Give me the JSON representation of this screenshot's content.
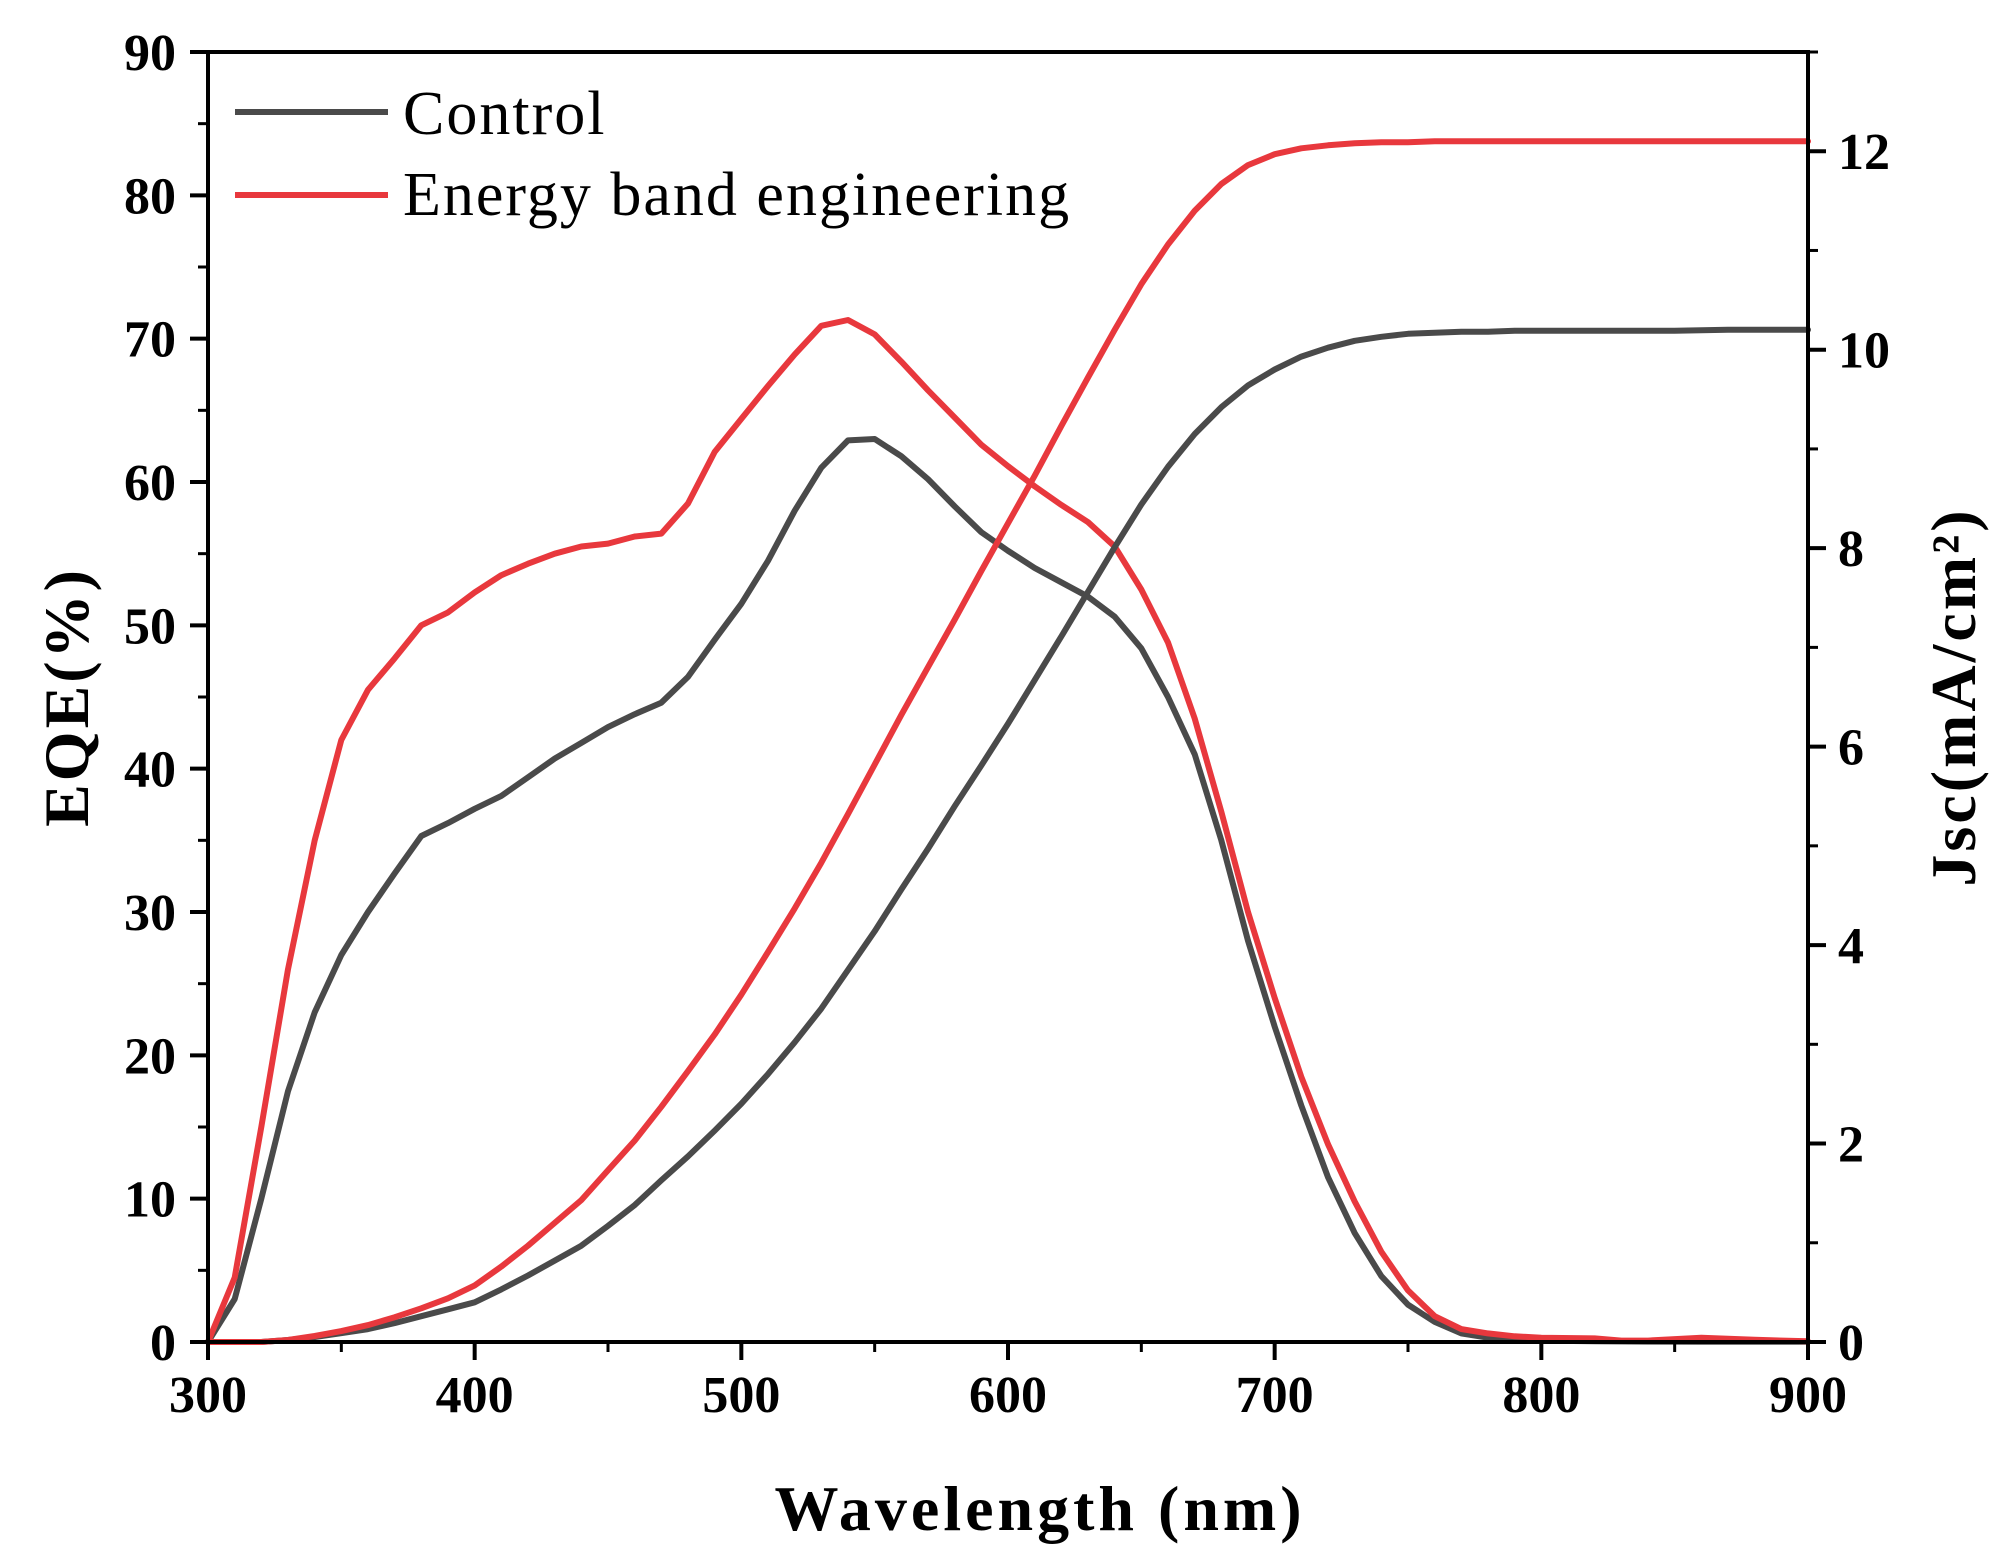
{
  "chart_data": {
    "type": "line",
    "title": "",
    "xlabel": "Wavelength (nm)",
    "ylabel_left": "EQE(%)",
    "ylabel_right": "Jsc(mA/cm²)",
    "xlim": [
      300,
      900
    ],
    "ylim_left": [
      0,
      90
    ],
    "ylim_right": [
      0,
      13
    ],
    "x_ticks": [
      300,
      400,
      500,
      600,
      700,
      800,
      900
    ],
    "y_left_ticks": [
      0,
      10,
      20,
      30,
      40,
      50,
      60,
      70,
      80,
      90
    ],
    "y_right_ticks": [
      0,
      2,
      4,
      6,
      8,
      10,
      12
    ],
    "grid": false,
    "legend_position": "top-left",
    "legend": [
      "Control",
      "Energy band engineering"
    ],
    "colors": {
      "control": "#4a4a4a",
      "energy": "#e8383d"
    },
    "series": [
      {
        "name": "Control",
        "kind": "EQE",
        "axis": "left",
        "x": [
          300,
          310,
          320,
          330,
          340,
          350,
          360,
          370,
          380,
          390,
          400,
          410,
          420,
          430,
          440,
          450,
          460,
          470,
          480,
          490,
          500,
          510,
          520,
          530,
          540,
          550,
          560,
          570,
          580,
          590,
          600,
          610,
          620,
          630,
          640,
          650,
          660,
          670,
          680,
          690,
          700,
          710,
          720,
          730,
          740,
          750,
          760,
          770,
          780,
          790,
          800,
          820,
          840,
          860,
          880,
          900
        ],
        "y": [
          0,
          3,
          10,
          17.5,
          23,
          27,
          30,
          32.7,
          35.3,
          36.2,
          37.2,
          38.1,
          39.4,
          40.7,
          41.8,
          42.9,
          43.8,
          44.6,
          46.4,
          49,
          51.5,
          54.5,
          58,
          61,
          62.9,
          63,
          61.8,
          60.2,
          58.3,
          56.5,
          55.2,
          54,
          53,
          52,
          50.6,
          48.4,
          45,
          41,
          35,
          28,
          22,
          16.5,
          11.5,
          7.6,
          4.6,
          2.6,
          1.4,
          0.6,
          0.3,
          0.2,
          0.1,
          0.05,
          0.03,
          0.02,
          0.02,
          0.02
        ]
      },
      {
        "name": "Energy band engineering",
        "kind": "EQE",
        "axis": "left",
        "x": [
          300,
          310,
          320,
          330,
          340,
          350,
          360,
          370,
          380,
          390,
          400,
          410,
          420,
          430,
          440,
          450,
          460,
          470,
          480,
          490,
          500,
          510,
          520,
          530,
          540,
          550,
          560,
          570,
          580,
          590,
          600,
          610,
          620,
          630,
          640,
          650,
          660,
          670,
          680,
          690,
          700,
          710,
          720,
          730,
          740,
          750,
          760,
          770,
          780,
          790,
          800,
          820,
          830,
          840,
          860,
          880,
          900
        ],
        "y": [
          0,
          4.5,
          15,
          26,
          35,
          42,
          45.5,
          47.7,
          50,
          50.9,
          52.3,
          53.5,
          54.3,
          55,
          55.5,
          55.7,
          56.2,
          56.4,
          58.5,
          62.1,
          64.4,
          66.7,
          68.9,
          70.9,
          71.3,
          70.3,
          68.4,
          66.4,
          64.5,
          62.6,
          61.1,
          59.7,
          58.4,
          57.2,
          55.5,
          52.5,
          48.8,
          43.5,
          37,
          30,
          24,
          18.5,
          13.8,
          9.8,
          6.3,
          3.6,
          1.8,
          0.9,
          0.6,
          0.4,
          0.3,
          0.25,
          0.1,
          0.1,
          0.3,
          0.15,
          0.05
        ]
      },
      {
        "name": "Control",
        "kind": "Jsc",
        "axis": "right",
        "x": [
          300,
          320,
          330,
          340,
          350,
          360,
          370,
          380,
          390,
          400,
          410,
          420,
          430,
          440,
          450,
          460,
          470,
          480,
          490,
          500,
          510,
          520,
          530,
          540,
          550,
          560,
          570,
          580,
          590,
          600,
          610,
          620,
          630,
          640,
          650,
          660,
          670,
          680,
          690,
          700,
          710,
          720,
          730,
          740,
          750,
          760,
          770,
          780,
          790,
          800,
          850,
          870,
          900
        ],
        "y": [
          0,
          0,
          0.02,
          0.05,
          0.09,
          0.13,
          0.19,
          0.26,
          0.33,
          0.4,
          0.53,
          0.67,
          0.82,
          0.97,
          1.17,
          1.38,
          1.63,
          1.87,
          2.13,
          2.4,
          2.7,
          3.02,
          3.36,
          3.75,
          4.14,
          4.56,
          4.97,
          5.4,
          5.81,
          6.23,
          6.67,
          7.11,
          7.56,
          8.01,
          8.44,
          8.82,
          9.15,
          9.42,
          9.64,
          9.8,
          9.93,
          10.02,
          10.09,
          10.13,
          10.16,
          10.17,
          10.18,
          10.18,
          10.19,
          10.19,
          10.19,
          10.2,
          10.2
        ]
      },
      {
        "name": "Energy band engineering",
        "kind": "Jsc",
        "axis": "right",
        "x": [
          300,
          320,
          330,
          340,
          350,
          360,
          370,
          380,
          390,
          400,
          410,
          420,
          430,
          440,
          450,
          460,
          470,
          480,
          490,
          500,
          510,
          520,
          530,
          540,
          550,
          560,
          570,
          580,
          590,
          600,
          610,
          620,
          630,
          640,
          650,
          660,
          670,
          680,
          690,
          700,
          710,
          720,
          730,
          740,
          750,
          760,
          770,
          780,
          790,
          800,
          850,
          870,
          900
        ],
        "y": [
          0,
          0,
          0.02,
          0.06,
          0.11,
          0.17,
          0.25,
          0.34,
          0.44,
          0.57,
          0.76,
          0.97,
          1.2,
          1.43,
          1.73,
          2.03,
          2.37,
          2.73,
          3.1,
          3.5,
          3.93,
          4.37,
          4.83,
          5.32,
          5.82,
          6.32,
          6.8,
          7.28,
          7.77,
          8.25,
          8.73,
          9.23,
          9.72,
          10.2,
          10.66,
          11.06,
          11.4,
          11.67,
          11.86,
          11.97,
          12.03,
          12.06,
          12.08,
          12.09,
          12.09,
          12.1,
          12.1,
          12.1,
          12.1,
          12.1,
          12.1,
          12.1,
          12.1
        ]
      }
    ]
  }
}
